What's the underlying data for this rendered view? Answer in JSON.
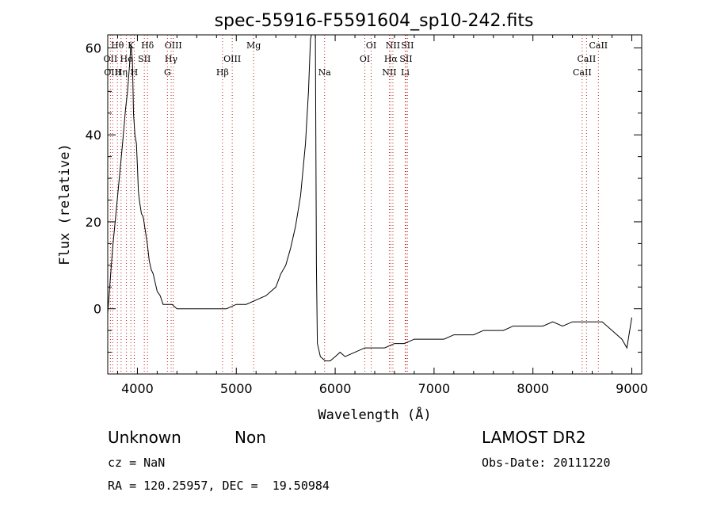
{
  "chart_data": {
    "type": "line",
    "title": "spec-55916-F5591604_sp10-242.fits",
    "xlabel": "Wavelength (Å)",
    "ylabel": "Flux (relative)",
    "xlim": [
      3700,
      9100
    ],
    "ylim": [
      -15,
      63
    ],
    "xticks": [
      4000,
      5000,
      6000,
      7000,
      8000,
      9000
    ],
    "yticks": [
      0,
      20,
      40,
      60
    ],
    "grid": false,
    "series": [
      {
        "values": [
          [
            3700,
            -1
          ],
          [
            3750,
            14
          ],
          [
            3800,
            26
          ],
          [
            3850,
            38
          ],
          [
            3880,
            46
          ],
          [
            3900,
            50
          ],
          [
            3920,
            56
          ],
          [
            3935,
            61
          ],
          [
            3950,
            57
          ],
          [
            3960,
            45
          ],
          [
            3975,
            40
          ],
          [
            3990,
            38
          ],
          [
            4000,
            33
          ],
          [
            4010,
            27
          ],
          [
            4020,
            25
          ],
          [
            4040,
            22
          ],
          [
            4060,
            21
          ],
          [
            4080,
            18
          ],
          [
            4100,
            15
          ],
          [
            4120,
            11
          ],
          [
            4140,
            9
          ],
          [
            4160,
            8
          ],
          [
            4180,
            6
          ],
          [
            4200,
            4
          ],
          [
            4230,
            3
          ],
          [
            4260,
            1
          ],
          [
            4300,
            1
          ],
          [
            4350,
            1
          ],
          [
            4400,
            0
          ],
          [
            4500,
            0
          ],
          [
            4600,
            0
          ],
          [
            4700,
            0
          ],
          [
            4800,
            0
          ],
          [
            4900,
            0
          ],
          [
            5000,
            1
          ],
          [
            5100,
            1
          ],
          [
            5200,
            2
          ],
          [
            5300,
            3
          ],
          [
            5400,
            5
          ],
          [
            5450,
            8
          ],
          [
            5500,
            10
          ],
          [
            5550,
            14
          ],
          [
            5600,
            19
          ],
          [
            5650,
            26
          ],
          [
            5700,
            38
          ],
          [
            5730,
            50
          ],
          [
            5750,
            62
          ],
          [
            5760,
            63
          ],
          [
            5800,
            63
          ],
          [
            5810,
            10
          ],
          [
            5820,
            -8
          ],
          [
            5850,
            -11
          ],
          [
            5900,
            -12
          ],
          [
            5950,
            -12
          ],
          [
            6000,
            -11
          ],
          [
            6050,
            -10
          ],
          [
            6100,
            -11
          ],
          [
            6200,
            -10
          ],
          [
            6300,
            -9
          ],
          [
            6400,
            -9
          ],
          [
            6500,
            -9
          ],
          [
            6600,
            -8
          ],
          [
            6700,
            -8
          ],
          [
            6800,
            -7
          ],
          [
            6900,
            -7
          ],
          [
            7000,
            -7
          ],
          [
            7100,
            -7
          ],
          [
            7200,
            -6
          ],
          [
            7300,
            -6
          ],
          [
            7400,
            -6
          ],
          [
            7500,
            -5
          ],
          [
            7600,
            -5
          ],
          [
            7700,
            -5
          ],
          [
            7800,
            -4
          ],
          [
            7900,
            -4
          ],
          [
            8000,
            -4
          ],
          [
            8100,
            -4
          ],
          [
            8200,
            -3
          ],
          [
            8300,
            -4
          ],
          [
            8400,
            -3
          ],
          [
            8500,
            -3
          ],
          [
            8600,
            -3
          ],
          [
            8700,
            -3
          ],
          [
            8800,
            -5
          ],
          [
            8850,
            -6
          ],
          [
            8900,
            -7
          ],
          [
            8950,
            -9
          ],
          [
            9000,
            -2
          ]
        ]
      }
    ],
    "line_markers": [
      {
        "label": "Hθ",
        "x": 3798,
        "row": 0
      },
      {
        "label": "K",
        "x": 3934,
        "row": 0
      },
      {
        "label": "Hδ",
        "x": 4102,
        "row": 0
      },
      {
        "label": "OIII",
        "x": 4363,
        "row": 0
      },
      {
        "label": "Mg",
        "x": 5175,
        "row": 0
      },
      {
        "label": "OI",
        "x": 6364,
        "row": 0
      },
      {
        "label": "NII",
        "x": 6584,
        "row": 0
      },
      {
        "label": "SII",
        "x": 6731,
        "row": 0
      },
      {
        "label": "CaII",
        "x": 8662,
        "row": 0
      },
      {
        "label": "OII",
        "x": 3727,
        "row": 1
      },
      {
        "label": "He",
        "x": 3889,
        "row": 1
      },
      {
        "label": "SII",
        "x": 4070,
        "row": 1
      },
      {
        "label": "Hγ",
        "x": 4341,
        "row": 1
      },
      {
        "label": "OIII",
        "x": 4959,
        "row": 1
      },
      {
        "label": "OI",
        "x": 6300,
        "row": 1
      },
      {
        "label": "Hα",
        "x": 6563,
        "row": 1
      },
      {
        "label": "SII",
        "x": 6716,
        "row": 1
      },
      {
        "label": "CaII",
        "x": 8542,
        "row": 1
      },
      {
        "label": "OIII",
        "x": 3750,
        "row": 2
      },
      {
        "label": "Hη",
        "x": 3835,
        "row": 2
      },
      {
        "label": "H",
        "x": 3968,
        "row": 2
      },
      {
        "label": "G",
        "x": 4304,
        "row": 2
      },
      {
        "label": "Hβ",
        "x": 4861,
        "row": 2
      },
      {
        "label": "Na",
        "x": 5893,
        "row": 2
      },
      {
        "label": "NII",
        "x": 6548,
        "row": 2
      },
      {
        "label": "Li",
        "x": 6708,
        "row": 2
      },
      {
        "label": "CaII",
        "x": 8498,
        "row": 2
      }
    ]
  },
  "info": {
    "object_class": "Unknown",
    "subclass": "Non",
    "survey": "LAMOST DR2",
    "redshift": "cz = NaN",
    "obs_date": "Obs-Date: 20111220",
    "coords": "RA = 120.25957, DEC =  19.50984"
  }
}
